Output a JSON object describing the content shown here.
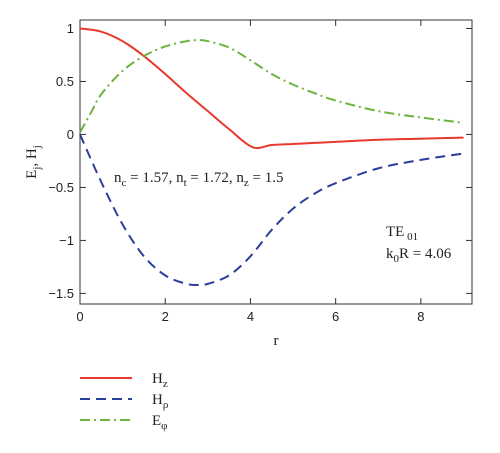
{
  "chart_data": {
    "type": "line",
    "xlabel": "r",
    "ylabel": {
      "main1": "E",
      "sub1": "j",
      "sep": ", ",
      "main2": "H",
      "sub2": "j"
    },
    "xlim": [
      0,
      9.2
    ],
    "ylim": [
      -1.6,
      1.08
    ],
    "xticks": [
      0,
      2,
      4,
      6,
      8
    ],
    "xtick_labels": [
      "0",
      "2",
      "4",
      "6",
      "8"
    ],
    "yticks": [
      1,
      0.5,
      0,
      -0.5,
      -1,
      -1.5
    ],
    "ytick_labels": [
      "1",
      "0.5",
      "0",
      "−0.5",
      "−1",
      "−1.5"
    ],
    "grid": false,
    "legend_position": "below-left",
    "annotations": {
      "params": {
        "n1": "n",
        "n1_sub": "c",
        "v1": " = 1.57, ",
        "n2": "n",
        "n2_sub": "t",
        "v2": " = 1.72, ",
        "n3": "n",
        "n3_sub": "z",
        "v3": " = 1.5"
      },
      "mode": {
        "main": "TE",
        "sub": " 01"
      },
      "k0R": {
        "main": "k",
        "sub": "0",
        "rest": "R = 4.06"
      }
    },
    "series": [
      {
        "name": "H",
        "name_sub": "z",
        "color": "#e8392c",
        "dash": "solid",
        "x": [
          0,
          0.5,
          1.0,
          1.5,
          2.0,
          2.5,
          3.0,
          3.5,
          4.05,
          4.5,
          5.0,
          5.5,
          6.0,
          7.0,
          8.0,
          9.0
        ],
        "y": [
          1.0,
          0.97,
          0.88,
          0.74,
          0.57,
          0.39,
          0.22,
          0.05,
          -0.12,
          -0.1,
          -0.09,
          -0.08,
          -0.07,
          -0.05,
          -0.04,
          -0.03
        ]
      },
      {
        "name": "H",
        "name_sub": "ρ",
        "color": "#2b3f9a",
        "dash": "10 6",
        "x": [
          0,
          0.5,
          1.0,
          1.5,
          2.0,
          2.5,
          2.8,
          3.0,
          3.5,
          4.0,
          4.5,
          5.0,
          5.5,
          6.0,
          7.0,
          8.0,
          9.0
        ],
        "y": [
          0.0,
          -0.45,
          -0.85,
          -1.15,
          -1.33,
          -1.41,
          -1.42,
          -1.41,
          -1.33,
          -1.15,
          -0.9,
          -0.7,
          -0.56,
          -0.46,
          -0.32,
          -0.24,
          -0.18
        ]
      },
      {
        "name": "E",
        "name_sub": "φ",
        "color": "#6db33f",
        "dash": "10 4 2 4",
        "x": [
          0,
          0.25,
          0.5,
          1.0,
          1.5,
          2.0,
          2.5,
          2.8,
          3.0,
          3.5,
          4.0,
          4.5,
          5.0,
          5.5,
          6.0,
          7.0,
          8.0,
          9.0
        ],
        "y": [
          0.02,
          0.2,
          0.38,
          0.6,
          0.74,
          0.83,
          0.88,
          0.89,
          0.88,
          0.82,
          0.7,
          0.57,
          0.47,
          0.39,
          0.32,
          0.22,
          0.16,
          0.11
        ]
      }
    ]
  }
}
